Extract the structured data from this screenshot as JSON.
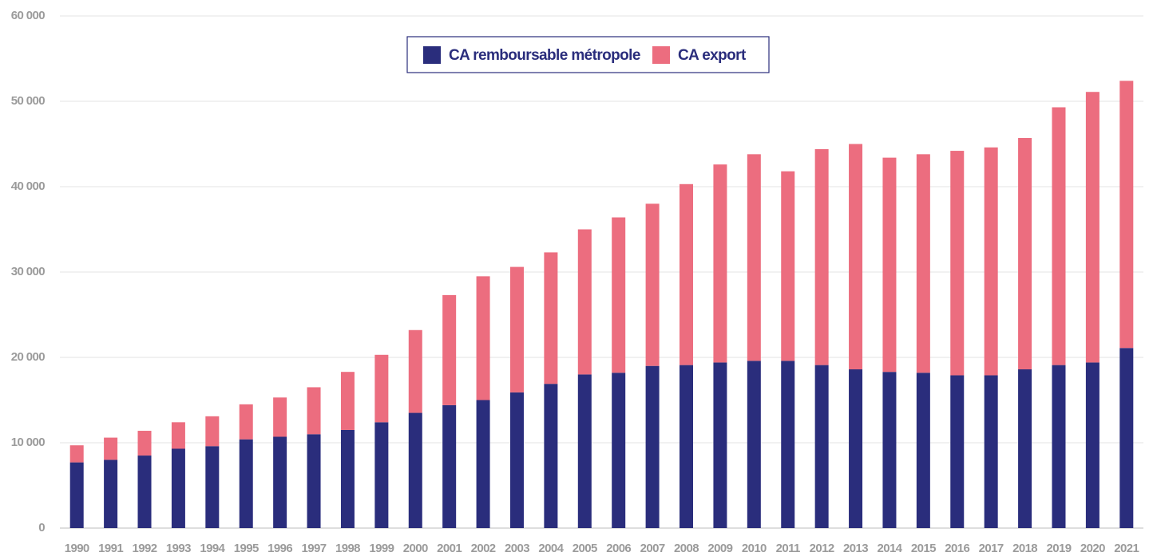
{
  "chart_data": {
    "type": "stacked-bar",
    "categories": [
      "1990",
      "1991",
      "1992",
      "1993",
      "1994",
      "1995",
      "1996",
      "1997",
      "1998",
      "1999",
      "2000",
      "2001",
      "2002",
      "2003",
      "2004",
      "2005",
      "2006",
      "2007",
      "2008",
      "2009",
      "2010",
      "2011",
      "2012",
      "2013",
      "2014",
      "2015",
      "2016",
      "2017",
      "2018",
      "2019",
      "2020",
      "2021"
    ],
    "series": [
      {
        "name": "CA remboursable métropole",
        "color": "#2a2d7c",
        "values": [
          7700,
          8000,
          8500,
          9300,
          9600,
          10400,
          10700,
          11000,
          11500,
          12400,
          13500,
          14400,
          15000,
          15900,
          16900,
          18000,
          18200,
          19000,
          19100,
          19400,
          19600,
          19600,
          19100,
          18600,
          18300,
          18200,
          17900,
          17900,
          18600,
          19100,
          19400,
          21100
        ]
      },
      {
        "name": "CA export",
        "color": "#ec6d7f",
        "values": [
          2000,
          2600,
          2900,
          3100,
          3500,
          4100,
          4600,
          5500,
          6800,
          7900,
          9700,
          12900,
          14500,
          14700,
          15400,
          17000,
          18200,
          19000,
          21200,
          23200,
          24200,
          22200,
          25300,
          26400,
          25100,
          25600,
          26300,
          26700,
          27100,
          30200,
          31700,
          31300
        ]
      }
    ],
    "ylim": [
      0,
      60000
    ],
    "yticks": [
      0,
      {
        "value": 10000,
        "label": "10 000"
      },
      {
        "value": 20000,
        "label": "20 000"
      },
      {
        "value": 30000,
        "label": "30 000"
      },
      {
        "value": 40000,
        "label": "40 000"
      },
      {
        "value": 50000,
        "label": "50 000"
      },
      {
        "value": 60000,
        "label": "60 000"
      }
    ],
    "grid": true,
    "legend": "top"
  }
}
